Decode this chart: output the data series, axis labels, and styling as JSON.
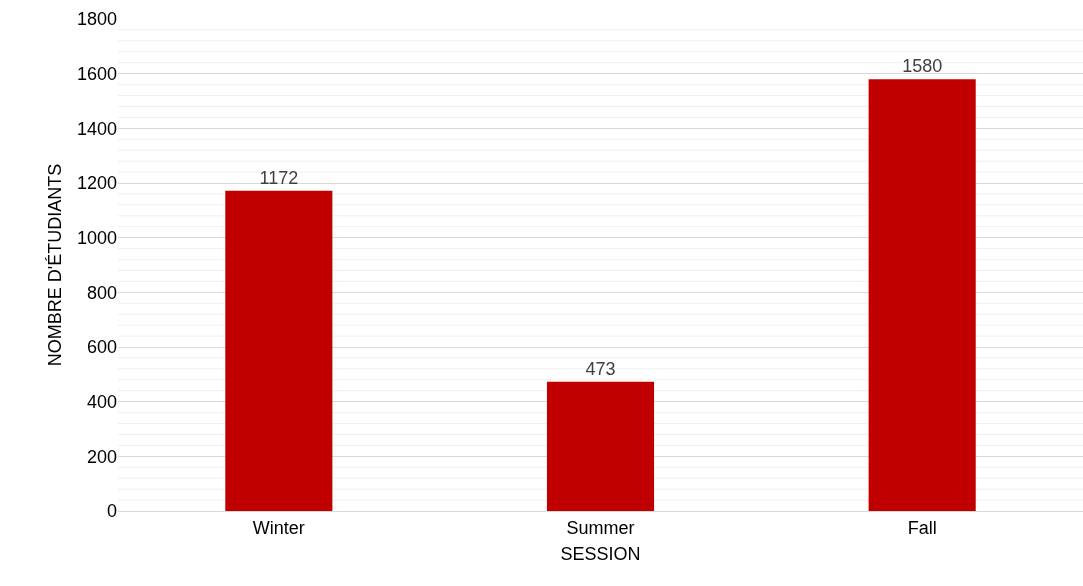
{
  "chart_data": {
    "type": "bar",
    "xlabel": "SESSION",
    "ylabel": "NOMBRE D'ÉTUDIANTS",
    "categories": [
      "Winter",
      "Summer",
      "Fall"
    ],
    "values": [
      1172,
      473,
      1580
    ],
    "color": "#c00000",
    "data_labels": true,
    "grid": "y",
    "ylim": [
      0,
      1800
    ],
    "yticks": [
      0,
      {
        "value": 40,
        "label": null
      },
      {
        "value": 80,
        "label": null
      },
      {
        "value": 120,
        "label": null
      },
      {
        "value": 160,
        "label": null
      },
      200,
      {
        "value": 240,
        "label": null
      },
      {
        "value": 280,
        "label": null
      },
      {
        "value": 320,
        "label": null
      },
      {
        "value": 360,
        "label": null
      },
      400,
      {
        "value": 440,
        "label": null
      },
      {
        "value": 480,
        "label": null
      },
      {
        "value": 520,
        "label": null
      },
      {
        "value": 560,
        "label": null
      },
      600,
      {
        "value": 640,
        "label": null
      },
      {
        "value": 680,
        "label": null
      },
      {
        "value": 720,
        "label": null
      },
      {
        "value": 760,
        "label": null
      },
      800,
      {
        "value": 840,
        "label": null
      },
      {
        "value": 880,
        "label": null
      },
      {
        "value": 920,
        "label": null
      },
      {
        "value": 960,
        "label": null
      },
      1000,
      {
        "value": 1040,
        "label": null
      },
      {
        "value": 1080,
        "label": null
      },
      {
        "value": 1120,
        "label": null
      },
      {
        "value": 1160,
        "label": null
      },
      1200,
      {
        "value": 1240,
        "label": null
      },
      {
        "value": 1280,
        "label": null
      },
      {
        "value": 1320,
        "label": null
      },
      {
        "value": 1360,
        "label": null
      },
      1400,
      {
        "value": 1440,
        "label": null
      },
      {
        "value": 1480,
        "label": null
      },
      {
        "value": 1520,
        "label": null
      },
      {
        "value": 1560,
        "label": null
      },
      1600,
      {
        "value": 1640,
        "label": null
      },
      {
        "value": 1680,
        "label": null
      },
      {
        "value": 1720,
        "label": null
      },
      {
        "value": 1760,
        "label": null
      },
      1800
    ]
  }
}
